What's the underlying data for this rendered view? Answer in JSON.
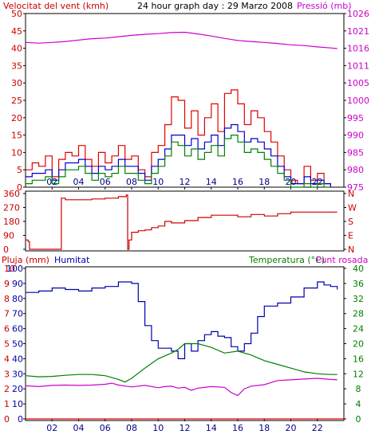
{
  "header": {
    "wind_label": "Velocitat del vent (kmh)",
    "title": "24 hour graph day : 29 Marzo 2008",
    "pressure_label": "Pressió (mb)"
  },
  "middle": {
    "compass_labels": [
      "N",
      "W",
      "S",
      "E",
      "N"
    ]
  },
  "bottom_header": {
    "rain_label": "Pluja (mm)",
    "humidity_label": "Humitat",
    "temp_label": "Temperatura (°C)",
    "dew_label": "Punt rosada"
  },
  "colors": {
    "wind": "#e00000",
    "gust": "#e00000",
    "wind_avg": "#0000cc",
    "wind_green": "#008000",
    "pressure": "#cc00cc",
    "direction": "#cc0000",
    "humidity": "#0000aa",
    "temperature": "#008000",
    "dew_point": "#cc00cc",
    "rain": "#e00000",
    "hour_tick": "#00008b"
  },
  "chart_data": [
    {
      "type": "line",
      "title": "24 hour graph day : 29 Marzo 2008",
      "x_ticks": [
        "02",
        "04",
        "06",
        "08",
        "10",
        "12",
        "14",
        "16",
        "18",
        "20",
        "22"
      ],
      "x_range_hours": [
        0,
        24
      ],
      "y_left_label": "Velocitat del vent (kmh)",
      "y_left_ticks": [
        "0",
        "5",
        "10",
        "15",
        "20",
        "25",
        "30",
        "35",
        "40",
        "45",
        "50"
      ],
      "ylim_left": [
        0,
        50
      ],
      "y_right_label": "Pressió (mb)",
      "y_right_ticks": [
        "975",
        "980",
        "985",
        "990",
        "995",
        "1000",
        "1005",
        "1011",
        "1016",
        "1021",
        "1026"
      ],
      "ylim_right": [
        975,
        1026
      ],
      "series": [
        {
          "name": "",
          "axis": "left",
          "key": "gust",
          "x": [
            0,
            0.5,
            1,
            1.5,
            2,
            2.5,
            3,
            3.5,
            4,
            4.5,
            5,
            5.5,
            6,
            6.5,
            7,
            7.5,
            8,
            8.5,
            9,
            9.5,
            10,
            10.5,
            11,
            11.5,
            12,
            12.5,
            13,
            13.5,
            14,
            14.5,
            15,
            15.5,
            16,
            16.5,
            17,
            17.5,
            18,
            18.5,
            19,
            19.5,
            20,
            20.5,
            21,
            21.5,
            22,
            22.5,
            23
          ],
          "y": [
            5,
            7,
            6,
            9,
            3,
            8,
            10,
            9,
            12,
            8,
            6,
            10,
            7,
            9,
            12,
            8,
            9,
            5,
            3,
            10,
            12,
            18,
            26,
            25,
            17,
            22,
            15,
            20,
            24,
            16,
            27,
            28,
            24,
            18,
            22,
            20,
            16,
            13,
            9,
            5,
            2,
            1,
            6,
            2,
            4,
            1,
            0
          ]
        },
        {
          "name": "",
          "axis": "left",
          "key": "wind_avg",
          "x": [
            0,
            0.5,
            1,
            1.5,
            2,
            2.5,
            3,
            3.5,
            4,
            4.5,
            5,
            5.5,
            6,
            6.5,
            7,
            7.5,
            8,
            8.5,
            9,
            9.5,
            10,
            10.5,
            11,
            11.5,
            12,
            12.5,
            13,
            13.5,
            14,
            14.5,
            15,
            15.5,
            16,
            16.5,
            17,
            17.5,
            18,
            18.5,
            19,
            19.5,
            20,
            20.5,
            21,
            21.5,
            22,
            22.5,
            23
          ],
          "y": [
            3,
            4,
            4,
            5,
            2,
            5,
            7,
            7,
            8,
            6,
            4,
            6,
            5,
            6,
            8,
            6,
            6,
            4,
            2,
            6,
            8,
            11,
            15,
            15,
            12,
            14,
            11,
            13,
            15,
            12,
            17,
            18,
            16,
            13,
            14,
            13,
            11,
            9,
            6,
            3,
            1,
            1,
            3,
            1,
            2,
            1,
            0
          ]
        },
        {
          "name": "",
          "axis": "left",
          "key": "wind_green",
          "x": [
            0,
            0.5,
            1,
            1.5,
            2,
            2.5,
            3,
            3.5,
            4,
            4.5,
            5,
            5.5,
            6,
            6.5,
            7,
            7.5,
            8,
            8.5,
            9,
            9.5,
            10,
            10.5,
            11,
            11.5,
            12,
            12.5,
            13,
            13.5,
            14,
            14.5,
            15,
            15.5,
            16,
            16.5,
            17,
            17.5,
            18,
            18.5,
            19,
            19.5,
            20,
            20.5,
            21,
            21.5,
            22,
            22.5,
            23
          ],
          "y": [
            1,
            2,
            2,
            3,
            1,
            3,
            5,
            5,
            6,
            4,
            2,
            4,
            3,
            4,
            6,
            4,
            4,
            2,
            1,
            4,
            6,
            9,
            13,
            12,
            9,
            11,
            8,
            10,
            12,
            9,
            14,
            15,
            13,
            10,
            11,
            10,
            8,
            6,
            4,
            2,
            0,
            0,
            1,
            0,
            1,
            0,
            0
          ]
        },
        {
          "name": "",
          "axis": "right",
          "key": "pressure",
          "x": [
            0,
            1,
            2,
            3,
            4,
            5,
            6,
            7,
            8,
            9,
            10,
            11,
            12,
            13,
            14,
            15,
            16,
            17,
            18,
            19,
            20,
            21,
            22,
            23,
            23.5
          ],
          "y": [
            1017.5,
            1017.3,
            1017.5,
            1017.8,
            1018.2,
            1018.6,
            1018.8,
            1019.2,
            1019.6,
            1019.9,
            1020.1,
            1020.4,
            1020.5,
            1020.0,
            1019.4,
            1018.7,
            1018.1,
            1017.8,
            1017.5,
            1017.2,
            1016.8,
            1016.6,
            1016.2,
            1015.9,
            1015.7
          ]
        }
      ]
    },
    {
      "type": "line",
      "x_range_hours": [
        0,
        24
      ],
      "y_left_ticks": [
        "360",
        "270",
        "180",
        "90",
        "0"
      ],
      "y_right_ticks": [
        "N",
        "W",
        "S",
        "E",
        "N"
      ],
      "ylim": [
        0,
        360
      ],
      "series": [
        {
          "name": "",
          "key": "direction",
          "x": [
            0,
            0.2,
            0.3,
            2.6,
            2.7,
            3,
            4,
            5,
            6,
            7,
            7.6,
            7.7,
            7.8,
            8,
            8.5,
            9,
            9.5,
            10,
            10.5,
            11,
            12,
            13,
            14,
            15,
            16,
            17,
            18,
            19,
            20,
            21,
            22,
            23,
            23.5
          ],
          "y": [
            60,
            50,
            0,
            0,
            330,
            320,
            320,
            325,
            330,
            340,
            350,
            0,
            60,
            110,
            120,
            125,
            140,
            150,
            180,
            170,
            185,
            205,
            220,
            220,
            210,
            225,
            215,
            230,
            240,
            240,
            240,
            240,
            240
          ]
        }
      ]
    },
    {
      "type": "line",
      "x_ticks": [
        "02",
        "04",
        "06",
        "08",
        "10",
        "12",
        "14",
        "16",
        "18",
        "20",
        "22"
      ],
      "x_range_hours": [
        0,
        24
      ],
      "y_rain_label": "Pluja (mm)",
      "y_rain_ticks": [
        "0",
        "1",
        "2",
        "3",
        "4",
        "5",
        "6",
        "7",
        "8",
        "9",
        "10"
      ],
      "y_humidity_ticks": [
        "0",
        "10",
        "20",
        "30",
        "40",
        "50",
        "60",
        "70",
        "80",
        "90",
        "100"
      ],
      "ylim_humidity": [
        0,
        100
      ],
      "y_right_ticks": [
        "0",
        "4",
        "8",
        "12",
        "16",
        "20",
        "24",
        "28",
        "32",
        "36",
        "40"
      ],
      "ylim_right": [
        0,
        40
      ],
      "series": [
        {
          "name": "Humitat",
          "key": "humidity",
          "axis": "humidity",
          "x": [
            0,
            1,
            2,
            3,
            4,
            5,
            6,
            7,
            8,
            8.5,
            9,
            9.5,
            10,
            11,
            11.5,
            12,
            12.5,
            13,
            13.5,
            14,
            14.5,
            15,
            15.5,
            16,
            16.5,
            17,
            17.5,
            18,
            19,
            20,
            21,
            22,
            22.5,
            23,
            23.5
          ],
          "y": [
            84,
            85,
            87,
            86,
            85,
            87,
            88,
            91,
            90,
            78,
            62,
            52,
            47,
            45,
            40,
            50,
            45,
            52,
            56,
            58,
            55,
            54,
            48,
            45,
            50,
            57,
            68,
            75,
            77,
            81,
            87,
            91,
            89,
            88,
            86
          ]
        },
        {
          "name": "Temperatura (°C)",
          "key": "temperature",
          "axis": "right",
          "x": [
            0,
            1,
            2,
            3,
            4,
            5,
            6,
            7,
            7.5,
            8,
            9,
            10,
            11,
            11.5,
            12,
            13,
            14,
            15,
            16,
            17,
            18,
            19,
            20,
            21,
            22,
            23,
            23.5
          ],
          "y": [
            11.5,
            11.2,
            11.3,
            11.6,
            11.8,
            11.8,
            11.5,
            10.5,
            9.8,
            10.8,
            13.5,
            16,
            17.5,
            18.5,
            20,
            20,
            19,
            17.5,
            18,
            17,
            15.5,
            14.5,
            13.5,
            12.5,
            12,
            11.8,
            11.8
          ]
        },
        {
          "name": "Punt rosada",
          "key": "dew_point",
          "axis": "right",
          "x": [
            0,
            1,
            2,
            3,
            4,
            5,
            6,
            6.5,
            7,
            8,
            9,
            10,
            10.5,
            11,
            11.5,
            12,
            12.5,
            13,
            14,
            15,
            15.5,
            16,
            16.5,
            17,
            18,
            19,
            20,
            21,
            22,
            23,
            23.5
          ],
          "y": [
            8.8,
            8.6,
            8.9,
            9,
            8.9,
            9,
            9.2,
            9.5,
            9,
            8.5,
            8.9,
            8.3,
            8.6,
            8.7,
            8.2,
            8.4,
            7.6,
            8.2,
            8.6,
            8.4,
            7,
            6.2,
            8,
            8.7,
            9.1,
            10.2,
            10.4,
            10.6,
            10.8,
            10.5,
            10.4
          ]
        },
        {
          "name": "Pluja (mm)",
          "key": "rain",
          "axis": "rain",
          "x": [
            0,
            24
          ],
          "y": [
            0,
            0
          ]
        }
      ]
    }
  ]
}
